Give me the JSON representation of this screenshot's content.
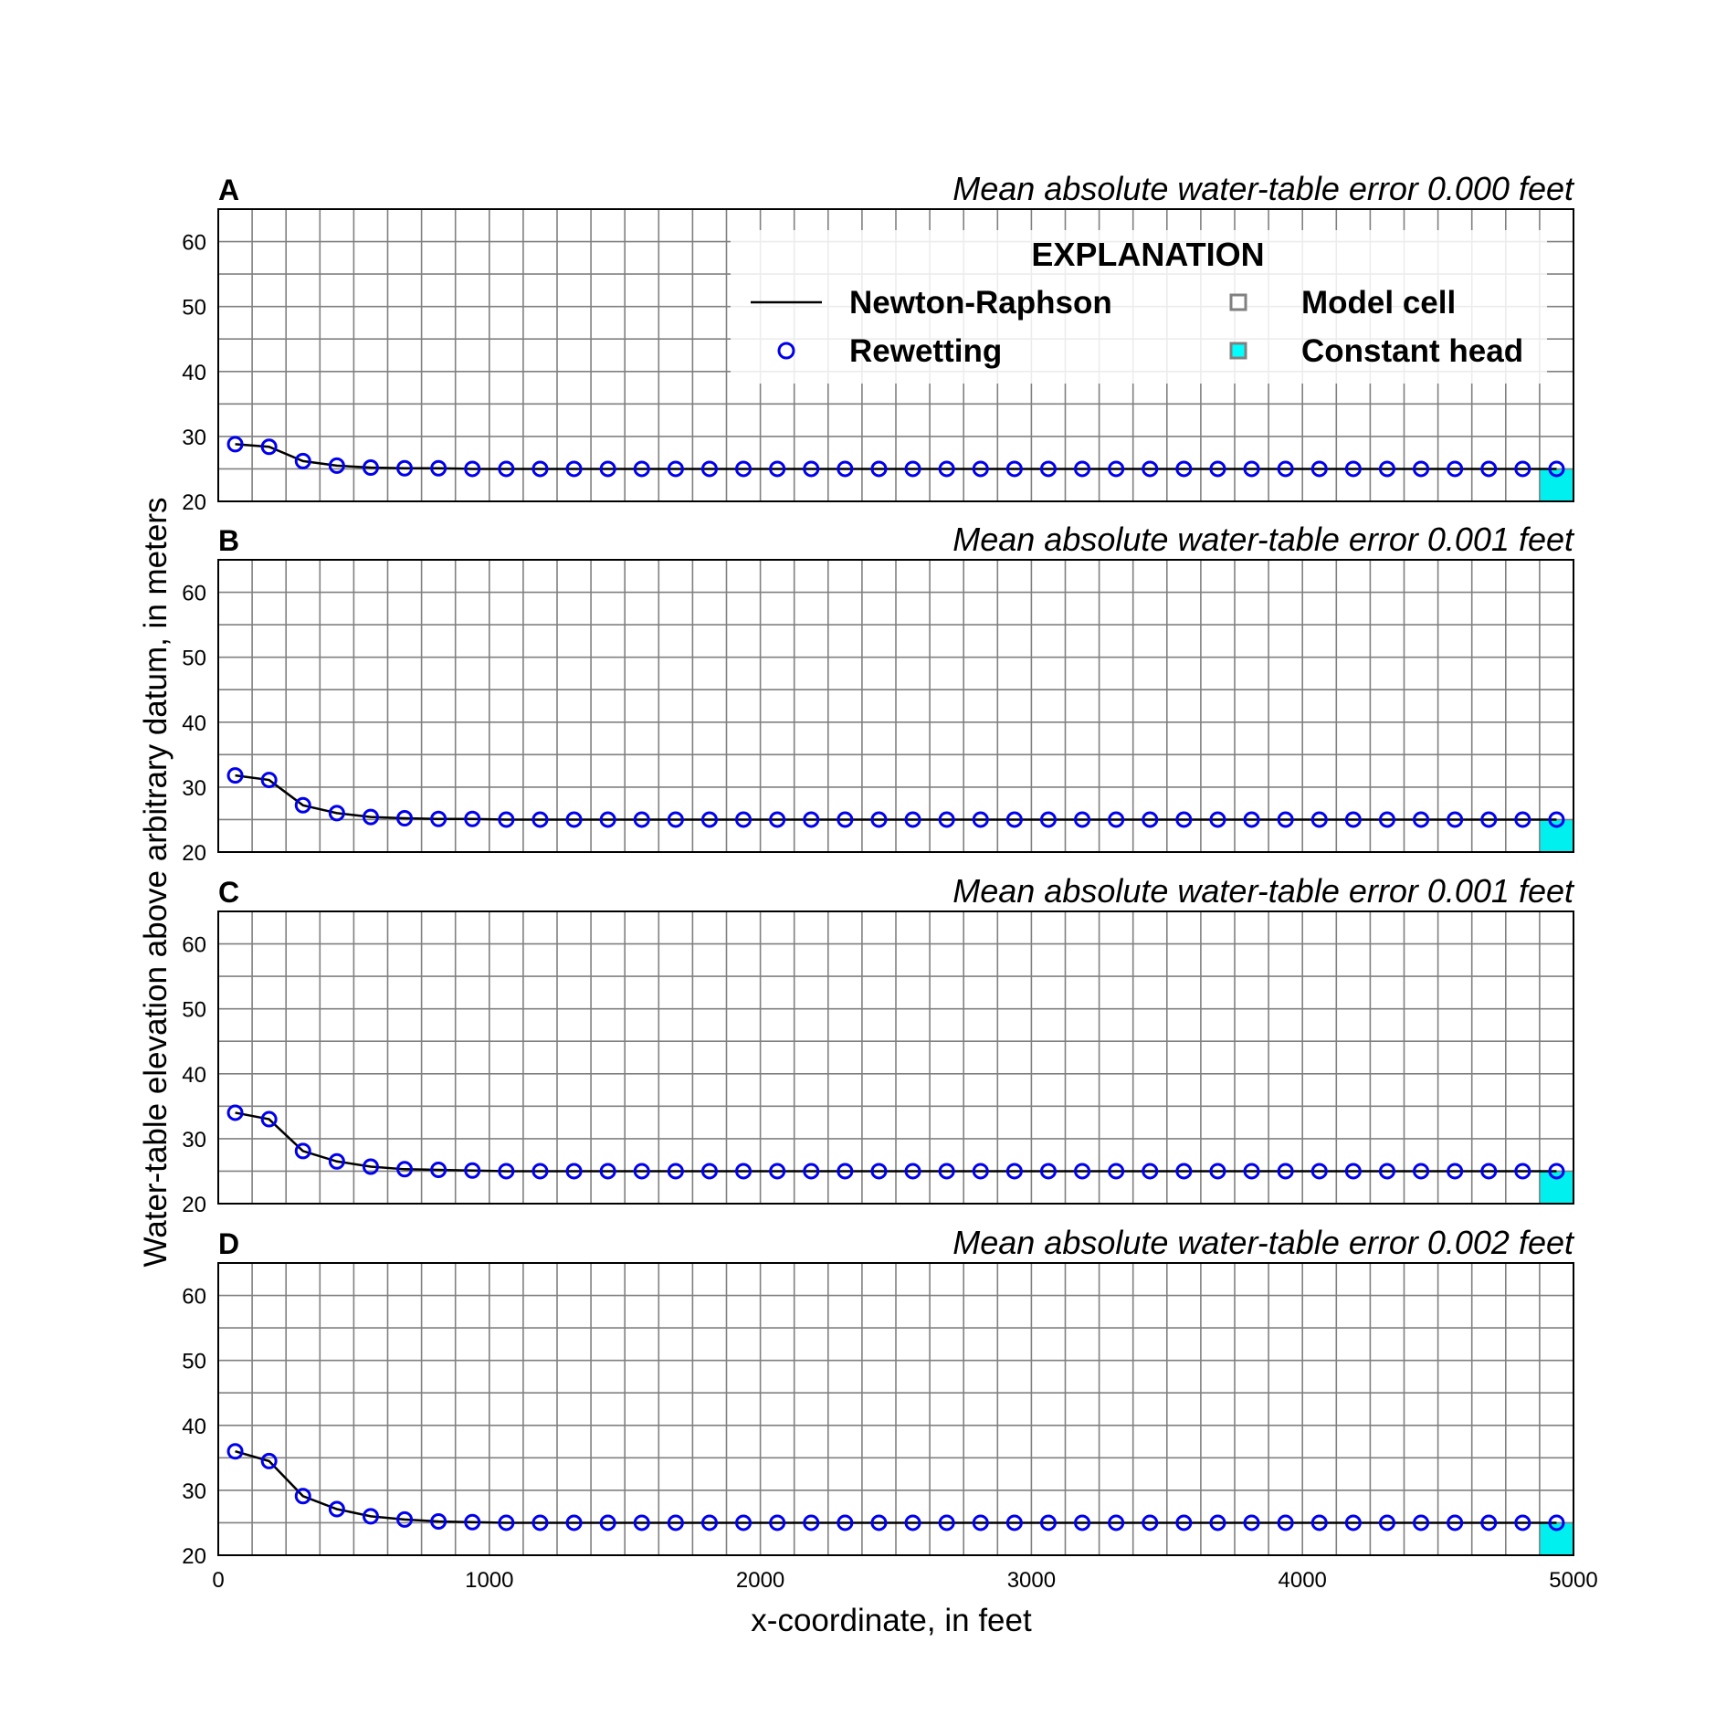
{
  "figure": {
    "ylabel": "Water-table elevation above arbitrary datum, in meters",
    "xlabel": "x-coordinate, in feet"
  },
  "legend": {
    "title": "EXPLANATION",
    "items": [
      {
        "label": "Newton-Raphson",
        "symbol": "line",
        "color": "#000000"
      },
      {
        "label": "Rewetting",
        "symbol": "circle",
        "color": "#0000ee"
      },
      {
        "label": "Model cell",
        "symbol": "square-outline",
        "color": "#808080"
      },
      {
        "label": "Constant head",
        "symbol": "square-filled",
        "color": "#00ffff"
      }
    ]
  },
  "colors": {
    "grid": "#808080",
    "newton_line": "#000000",
    "rewetting_marker": "#0000ee",
    "constant_head": "#00f0f0"
  },
  "chart_data": [
    {
      "type": "line",
      "panel": "A",
      "title": "Mean absolute water-table error 0.000 feet",
      "xlim": [
        0,
        5000
      ],
      "ylim": [
        20,
        65
      ],
      "yticks": [
        20,
        30,
        40,
        50,
        60
      ],
      "xticks": [
        0,
        1000,
        2000,
        3000,
        4000,
        5000
      ],
      "grid": true,
      "cell_width": 125,
      "cell_height": 5,
      "constant_head_cell": {
        "x": [
          4875,
          5000
        ],
        "y": [
          20,
          25
        ]
      },
      "x": [
        62.5,
        187.5,
        312.5,
        437.5,
        562.5,
        687.5,
        812.5,
        937.5,
        1062.5,
        1187.5,
        1312.5,
        1437.5,
        1562.5,
        1687.5,
        1812.5,
        1937.5,
        2062.5,
        2187.5,
        2312.5,
        2437.5,
        2562.5,
        2687.5,
        2812.5,
        2937.5,
        3062.5,
        3187.5,
        3312.5,
        3437.5,
        3562.5,
        3687.5,
        3812.5,
        3937.5,
        4062.5,
        4187.5,
        4312.5,
        4437.5,
        4562.5,
        4687.5,
        4812.5,
        4937.5
      ],
      "series": [
        {
          "name": "Newton-Raphson",
          "values": [
            28.8,
            28.4,
            26.2,
            25.5,
            25.2,
            25.1,
            25.1,
            25.0,
            25.0,
            25.0,
            25.0,
            25.0,
            25.0,
            25.0,
            25.0,
            25.0,
            25.0,
            25.0,
            25.0,
            25.0,
            25.0,
            25.0,
            25.0,
            25.0,
            25.0,
            25.0,
            25.0,
            25.0,
            25.0,
            25.0,
            25.0,
            25.0,
            25.0,
            25.0,
            25.0,
            25.0,
            25.0,
            25.0,
            25.0,
            25.0
          ]
        },
        {
          "name": "Rewetting",
          "values": [
            28.8,
            28.4,
            26.2,
            25.5,
            25.2,
            25.1,
            25.1,
            25.0,
            25.0,
            25.0,
            25.0,
            25.0,
            25.0,
            25.0,
            25.0,
            25.0,
            25.0,
            25.0,
            25.0,
            25.0,
            25.0,
            25.0,
            25.0,
            25.0,
            25.0,
            25.0,
            25.0,
            25.0,
            25.0,
            25.0,
            25.0,
            25.0,
            25.0,
            25.0,
            25.0,
            25.0,
            25.0,
            25.0,
            25.0,
            25.0
          ]
        }
      ]
    },
    {
      "type": "line",
      "panel": "B",
      "title": "Mean absolute water-table error 0.001 feet",
      "xlim": [
        0,
        5000
      ],
      "ylim": [
        20,
        65
      ],
      "yticks": [
        20,
        30,
        40,
        50,
        60
      ],
      "xticks": [
        0,
        1000,
        2000,
        3000,
        4000,
        5000
      ],
      "grid": true,
      "cell_width": 125,
      "cell_height": 5,
      "constant_head_cell": {
        "x": [
          4875,
          5000
        ],
        "y": [
          20,
          25
        ]
      },
      "x": [
        62.5,
        187.5,
        312.5,
        437.5,
        562.5,
        687.5,
        812.5,
        937.5,
        1062.5,
        1187.5,
        1312.5,
        1437.5,
        1562.5,
        1687.5,
        1812.5,
        1937.5,
        2062.5,
        2187.5,
        2312.5,
        2437.5,
        2562.5,
        2687.5,
        2812.5,
        2937.5,
        3062.5,
        3187.5,
        3312.5,
        3437.5,
        3562.5,
        3687.5,
        3812.5,
        3937.5,
        4062.5,
        4187.5,
        4312.5,
        4437.5,
        4562.5,
        4687.5,
        4812.5,
        4937.5
      ],
      "series": [
        {
          "name": "Newton-Raphson",
          "values": [
            31.8,
            31.1,
            27.2,
            26.0,
            25.4,
            25.2,
            25.1,
            25.1,
            25.0,
            25.0,
            25.0,
            25.0,
            25.0,
            25.0,
            25.0,
            25.0,
            25.0,
            25.0,
            25.0,
            25.0,
            25.0,
            25.0,
            25.0,
            25.0,
            25.0,
            25.0,
            25.0,
            25.0,
            25.0,
            25.0,
            25.0,
            25.0,
            25.0,
            25.0,
            25.0,
            25.0,
            25.0,
            25.0,
            25.0,
            25.0
          ]
        },
        {
          "name": "Rewetting",
          "values": [
            31.8,
            31.1,
            27.2,
            26.0,
            25.4,
            25.2,
            25.1,
            25.1,
            25.0,
            25.0,
            25.0,
            25.0,
            25.0,
            25.0,
            25.0,
            25.0,
            25.0,
            25.0,
            25.0,
            25.0,
            25.0,
            25.0,
            25.0,
            25.0,
            25.0,
            25.0,
            25.0,
            25.0,
            25.0,
            25.0,
            25.0,
            25.0,
            25.0,
            25.0,
            25.0,
            25.0,
            25.0,
            25.0,
            25.0,
            25.0
          ]
        }
      ]
    },
    {
      "type": "line",
      "panel": "C",
      "title": "Mean absolute water-table error 0.001 feet",
      "xlim": [
        0,
        5000
      ],
      "ylim": [
        20,
        65
      ],
      "yticks": [
        20,
        30,
        40,
        50,
        60
      ],
      "xticks": [
        0,
        1000,
        2000,
        3000,
        4000,
        5000
      ],
      "grid": true,
      "cell_width": 125,
      "cell_height": 5,
      "constant_head_cell": {
        "x": [
          4875,
          5000
        ],
        "y": [
          20,
          25
        ]
      },
      "x": [
        62.5,
        187.5,
        312.5,
        437.5,
        562.5,
        687.5,
        812.5,
        937.5,
        1062.5,
        1187.5,
        1312.5,
        1437.5,
        1562.5,
        1687.5,
        1812.5,
        1937.5,
        2062.5,
        2187.5,
        2312.5,
        2437.5,
        2562.5,
        2687.5,
        2812.5,
        2937.5,
        3062.5,
        3187.5,
        3312.5,
        3437.5,
        3562.5,
        3687.5,
        3812.5,
        3937.5,
        4062.5,
        4187.5,
        4312.5,
        4437.5,
        4562.5,
        4687.5,
        4812.5,
        4937.5
      ],
      "series": [
        {
          "name": "Newton-Raphson",
          "values": [
            34.0,
            33.0,
            28.1,
            26.5,
            25.7,
            25.3,
            25.2,
            25.1,
            25.0,
            25.0,
            25.0,
            25.0,
            25.0,
            25.0,
            25.0,
            25.0,
            25.0,
            25.0,
            25.0,
            25.0,
            25.0,
            25.0,
            25.0,
            25.0,
            25.0,
            25.0,
            25.0,
            25.0,
            25.0,
            25.0,
            25.0,
            25.0,
            25.0,
            25.0,
            25.0,
            25.0,
            25.0,
            25.0,
            25.0,
            25.0
          ]
        },
        {
          "name": "Rewetting",
          "values": [
            34.0,
            33.0,
            28.1,
            26.5,
            25.7,
            25.3,
            25.2,
            25.1,
            25.0,
            25.0,
            25.0,
            25.0,
            25.0,
            25.0,
            25.0,
            25.0,
            25.0,
            25.0,
            25.0,
            25.0,
            25.0,
            25.0,
            25.0,
            25.0,
            25.0,
            25.0,
            25.0,
            25.0,
            25.0,
            25.0,
            25.0,
            25.0,
            25.0,
            25.0,
            25.0,
            25.0,
            25.0,
            25.0,
            25.0,
            25.0
          ]
        }
      ]
    },
    {
      "type": "line",
      "panel": "D",
      "title": "Mean absolute water-table error 0.002 feet",
      "xlim": [
        0,
        5000
      ],
      "ylim": [
        20,
        65
      ],
      "yticks": [
        20,
        30,
        40,
        50,
        60
      ],
      "xticks": [
        0,
        1000,
        2000,
        3000,
        4000,
        5000
      ],
      "grid": true,
      "cell_width": 125,
      "cell_height": 5,
      "constant_head_cell": {
        "x": [
          4875,
          5000
        ],
        "y": [
          20,
          25
        ]
      },
      "x": [
        62.5,
        187.5,
        312.5,
        437.5,
        562.5,
        687.5,
        812.5,
        937.5,
        1062.5,
        1187.5,
        1312.5,
        1437.5,
        1562.5,
        1687.5,
        1812.5,
        1937.5,
        2062.5,
        2187.5,
        2312.5,
        2437.5,
        2562.5,
        2687.5,
        2812.5,
        2937.5,
        3062.5,
        3187.5,
        3312.5,
        3437.5,
        3562.5,
        3687.5,
        3812.5,
        3937.5,
        4062.5,
        4187.5,
        4312.5,
        4437.5,
        4562.5,
        4687.5,
        4812.5,
        4937.5
      ],
      "series": [
        {
          "name": "Newton-Raphson",
          "values": [
            36.0,
            34.5,
            29.1,
            27.1,
            26.0,
            25.5,
            25.2,
            25.1,
            25.0,
            25.0,
            25.0,
            25.0,
            25.0,
            25.0,
            25.0,
            25.0,
            25.0,
            25.0,
            25.0,
            25.0,
            25.0,
            25.0,
            25.0,
            25.0,
            25.0,
            25.0,
            25.0,
            25.0,
            25.0,
            25.0,
            25.0,
            25.0,
            25.0,
            25.0,
            25.0,
            25.0,
            25.0,
            25.0,
            25.0,
            25.0
          ]
        },
        {
          "name": "Rewetting",
          "values": [
            36.0,
            34.5,
            29.1,
            27.1,
            26.0,
            25.5,
            25.2,
            25.1,
            25.0,
            25.0,
            25.0,
            25.0,
            25.0,
            25.0,
            25.0,
            25.0,
            25.0,
            25.0,
            25.0,
            25.0,
            25.0,
            25.0,
            25.0,
            25.0,
            25.0,
            25.0,
            25.0,
            25.0,
            25.0,
            25.0,
            25.0,
            25.0,
            25.0,
            25.0,
            25.0,
            25.0,
            25.0,
            25.0,
            25.0,
            25.0
          ]
        }
      ]
    }
  ]
}
